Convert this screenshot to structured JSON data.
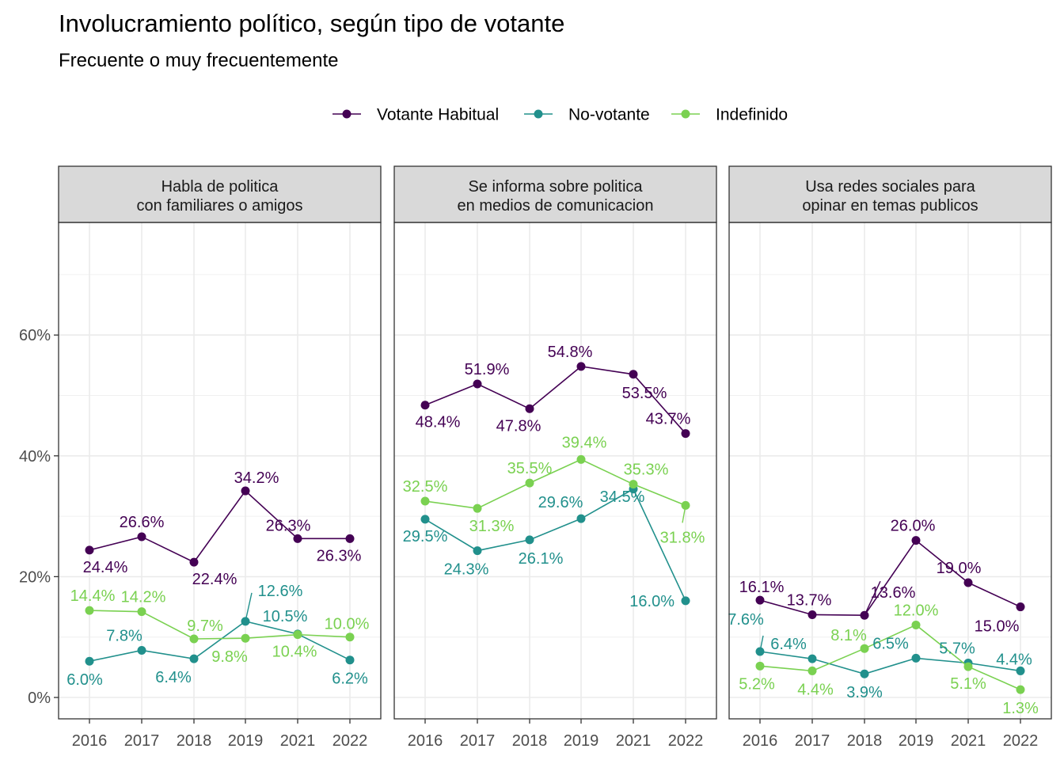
{
  "title": "Involucramiento político, según tipo de votante",
  "subtitle": "Frecuente o muy frecuentemente",
  "legend": {
    "placement": "top-center",
    "items": [
      {
        "name": "Votante Habitual",
        "color": "#440154"
      },
      {
        "name": "No-votante",
        "color": "#21908C"
      },
      {
        "name": "Indefinido",
        "color": "#7AD151"
      }
    ]
  },
  "chart_data": {
    "type": "line",
    "x_categories": [
      "2016",
      "2017",
      "2018",
      "2019",
      "2021",
      "2022"
    ],
    "y_ticks": [
      "0%",
      "20%",
      "40%",
      "60%"
    ],
    "ylim": [
      0,
      77
    ],
    "grid": true,
    "panels": [
      {
        "strip_line1": "Habla de politica",
        "strip_line2": "con familiares o amigos",
        "series": [
          {
            "name": "Votante Habitual",
            "values": [
              24.4,
              26.6,
              22.4,
              34.2,
              26.3,
              26.3
            ],
            "labels": [
              "24.4%",
              "26.6%",
              "22.4%",
              "34.2%",
              "26.3%",
              "26.3%"
            ]
          },
          {
            "name": "No-votante",
            "values": [
              6.0,
              7.8,
              6.4,
              12.6,
              10.5,
              6.2
            ],
            "labels": [
              "6.0%",
              "7.8%",
              "6.4%",
              "12.6%",
              "10.5%",
              "6.2%"
            ]
          },
          {
            "name": "Indefinido",
            "values": [
              14.4,
              14.2,
              9.7,
              9.8,
              10.4,
              10.0
            ],
            "labels": [
              "14.4%",
              "14.2%",
              "9.7%",
              "9.8%",
              "10.4%",
              "10.0%"
            ]
          }
        ]
      },
      {
        "strip_line1": "Se informa sobre politica",
        "strip_line2": "en medios de comunicacion",
        "series": [
          {
            "name": "Votante Habitual",
            "values": [
              48.4,
              51.9,
              47.8,
              54.8,
              53.5,
              43.7
            ],
            "labels": [
              "48.4%",
              "51.9%",
              "47.8%",
              "54.8%",
              "53.5%",
              "43.7%"
            ]
          },
          {
            "name": "No-votante",
            "values": [
              29.5,
              24.3,
              26.1,
              29.6,
              34.5,
              16.0
            ],
            "labels": [
              "29.5%",
              "24.3%",
              "26.1%",
              "29.6%",
              "34.5%",
              "16.0%"
            ]
          },
          {
            "name": "Indefinido",
            "values": [
              32.5,
              31.3,
              35.5,
              39.4,
              35.3,
              31.8
            ],
            "labels": [
              "32.5%",
              "31.3%",
              "35.5%",
              "39.4%",
              "35.3%",
              "31.8%"
            ]
          }
        ]
      },
      {
        "strip_line1": "Usa redes sociales para",
        "strip_line2": "opinar en temas publicos",
        "series": [
          {
            "name": "Votante Habitual",
            "values": [
              16.1,
              13.7,
              13.6,
              26.0,
              19.0,
              15.0
            ],
            "labels": [
              "16.1%",
              "13.7%",
              "13.6%",
              "26.0%",
              "19.0%",
              "15.0%"
            ]
          },
          {
            "name": "No-votante",
            "values": [
              7.6,
              6.4,
              3.9,
              6.5,
              5.7,
              4.4
            ],
            "labels": [
              "7.6%",
              "6.4%",
              "3.9%",
              "6.5%",
              "5.7%",
              "4.4%"
            ]
          },
          {
            "name": "Indefinido",
            "values": [
              5.2,
              4.4,
              8.1,
              12.0,
              5.1,
              1.3
            ],
            "labels": [
              "5.2%",
              "4.4%",
              "8.1%",
              "12.0%",
              "5.1%",
              "1.3%"
            ]
          }
        ]
      }
    ]
  }
}
